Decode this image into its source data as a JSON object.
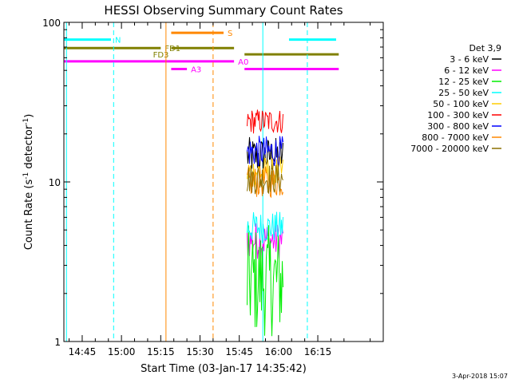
{
  "chart_data": {
    "type": "line",
    "title": "HESSI Observing Summary Count Rates",
    "xlabel": "Start Time (03-Jan-17 14:35:42)",
    "ylabel_main": "Count Rate (s",
    "ylabel_sup1": "-1",
    "ylabel_mid": " detector",
    "ylabel_sup2": "-1",
    "ylabel_end": ")",
    "y_scale": "log",
    "ylim": [
      1,
      100
    ],
    "xlim_minutes": [
      38,
      160
    ],
    "x_ticks": [
      {
        "label": "14:45",
        "min": 45
      },
      {
        "label": "15:00",
        "min": 60
      },
      {
        "label": "15:15",
        "min": 75
      },
      {
        "label": "15:30",
        "min": 90
      },
      {
        "label": "15:45",
        "min": 105
      },
      {
        "label": "16:00",
        "min": 120
      },
      {
        "label": "16:15",
        "min": 135
      }
    ],
    "y_ticks": [
      {
        "label": "100",
        "value": 100
      },
      {
        "label": "10",
        "value": 10
      },
      {
        "label": "1",
        "value": 1
      }
    ],
    "legend_title": "Det 3,9",
    "legend_position": "right",
    "series": [
      {
        "name": "3 - 6 keV",
        "color": "#000000",
        "level": 14.5,
        "spread": 0.12
      },
      {
        "name": "6 - 12 keV",
        "color": "#ff00ff",
        "level": 4.3,
        "spread": 0.12
      },
      {
        "name": "12 - 25 keV",
        "color": "#00ee00",
        "level": 2.4,
        "spread": 0.35
      },
      {
        "name": "25 - 50 keV",
        "color": "#00ffff",
        "level": 5.2,
        "spread": 0.1
      },
      {
        "name": "50 - 100 keV",
        "color": "#ffcc00",
        "level": 11.5,
        "spread": 0.1
      },
      {
        "name": "100 - 300 keV",
        "color": "#ff0000",
        "level": 24,
        "spread": 0.08
      },
      {
        "name": "300 - 800 keV",
        "color": "#0000ff",
        "level": 15.5,
        "spread": 0.1
      },
      {
        "name": "800 - 7000 keV",
        "color": "#ff8800",
        "level": 10,
        "spread": 0.1
      },
      {
        "name": "7000 - 20000 keV",
        "color": "#8b6f00",
        "level": 10.5,
        "spread": 0.1
      }
    ],
    "data_window_minutes": [
      108,
      122
    ],
    "flags": [
      {
        "label": "N",
        "color": "#00ffff",
        "level": 78,
        "segments": [
          [
            38,
            56
          ],
          [
            124,
            142
          ]
        ]
      },
      {
        "label": "S",
        "color": "#ff8800",
        "level": 86,
        "segments": [
          [
            79,
            99
          ]
        ]
      },
      {
        "label": "FD1",
        "color": "#808000",
        "level": 69,
        "segments": [
          [
            38,
            75
          ],
          [
            79,
            103
          ]
        ]
      },
      {
        "label": "FD3",
        "color": "#808000",
        "level": 63,
        "segments": [
          [
            79,
            79
          ],
          [
            107,
            143
          ]
        ]
      },
      {
        "label": "A0",
        "color": "#ff00ff",
        "level": 57,
        "segments": [
          [
            38,
            103
          ]
        ]
      },
      {
        "label": "A3",
        "color": "#ff00ff",
        "level": 51,
        "segments": [
          [
            79,
            85
          ],
          [
            107,
            143
          ]
        ]
      }
    ],
    "vertical_lines": [
      {
        "min": 39,
        "color": "#00ffff",
        "style": "solid"
      },
      {
        "min": 57,
        "color": "#00ffff",
        "style": "dashed"
      },
      {
        "min": 77,
        "color": "#ff8800",
        "style": "solid"
      },
      {
        "min": 95,
        "color": "#ff8800",
        "style": "dashed"
      },
      {
        "min": 114,
        "color": "#00ffff",
        "style": "solid"
      },
      {
        "min": 131,
        "color": "#00ffff",
        "style": "dashed"
      }
    ]
  },
  "footer": {
    "timestamp": "3-Apr-2018 15:07"
  }
}
